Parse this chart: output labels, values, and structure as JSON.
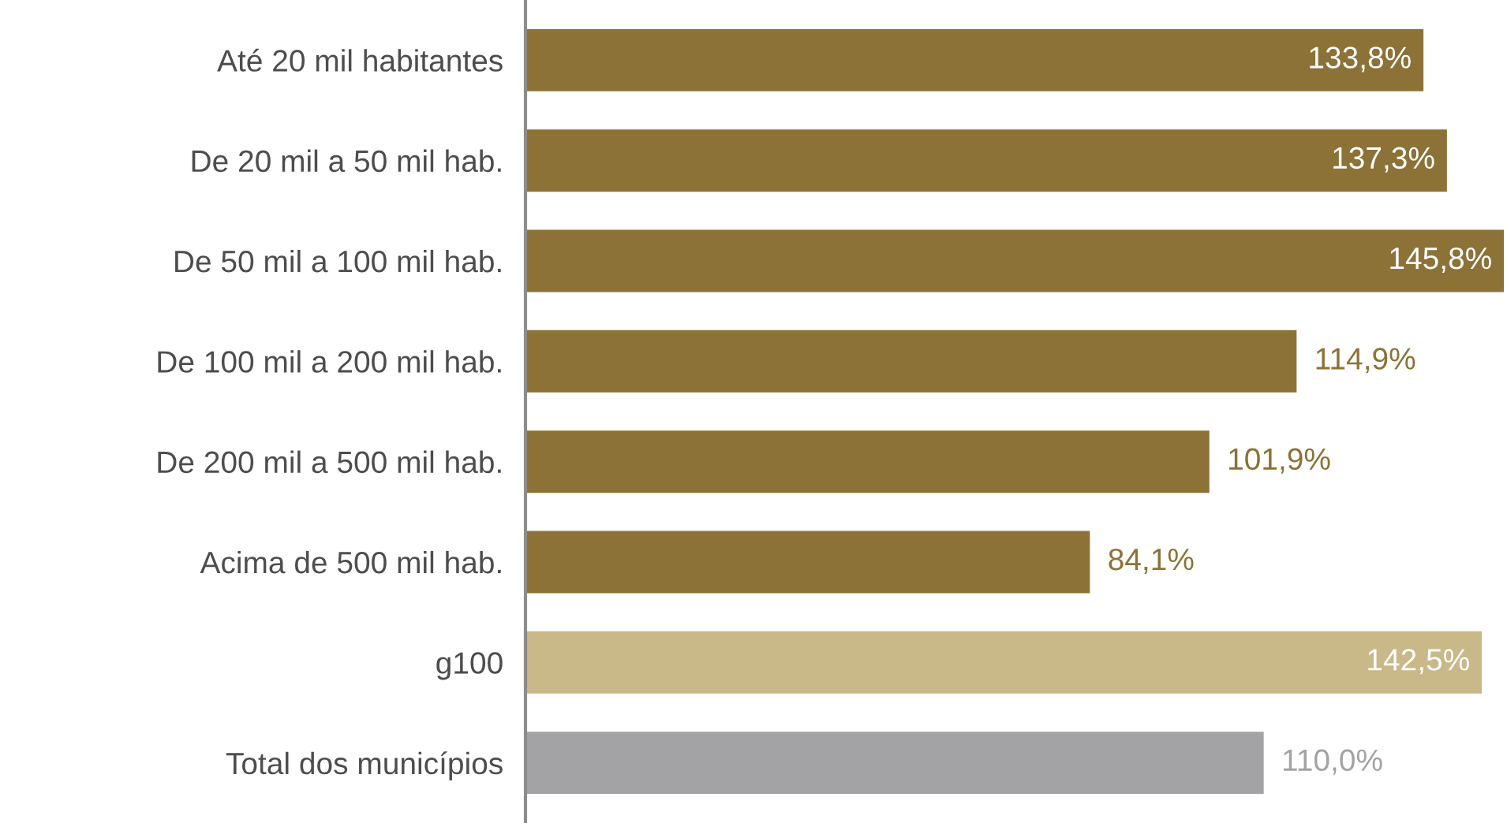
{
  "chart_data": {
    "type": "bar",
    "orientation": "horizontal",
    "categories": [
      "Até 20 mil habitantes",
      "De 20 mil a 50 mil hab.",
      "De 50 mil a 100 mil hab.",
      "De 100 mil a 200 mil hab.",
      "De 200 mil a 500 mil hab.",
      "Acima de 500 mil hab.",
      "g100",
      "Total dos municípios"
    ],
    "values": [
      133.8,
      137.3,
      145.8,
      114.9,
      101.9,
      84.1,
      142.5,
      110.0
    ],
    "value_labels": [
      "133,8%",
      "137,3%",
      "145,8%",
      "114,9%",
      "101,9%",
      "84,1%",
      "142,5%",
      "110,0%"
    ],
    "colors": [
      "#8c7237",
      "#8c7237",
      "#8c7237",
      "#8c7237",
      "#8c7237",
      "#8c7237",
      "#c9b888",
      "#a3a3a6"
    ],
    "grid": false,
    "legend": false
  }
}
